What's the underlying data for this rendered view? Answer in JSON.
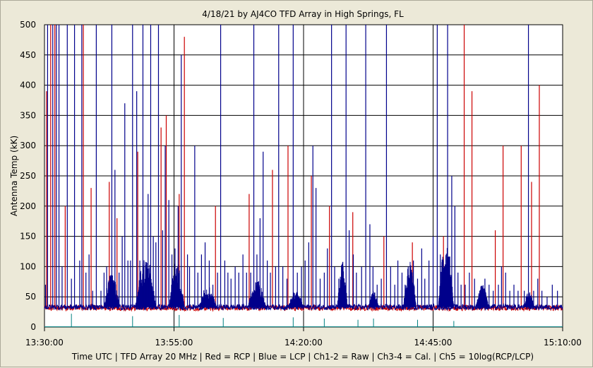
{
  "chart_data": {
    "type": "line",
    "title": "4/18/21  by  AJ4CO TFD Array  in  High Springs, FL",
    "ylabel": "Antenna Temp (kK)",
    "xlabel": "Time UTC | TFD Array 20 MHz | Red = RCP | Blue = LCP | Ch1-2 = Raw | Ch3-4 = Cal. | Ch5 = 10log(RCP/LCP)",
    "ylim": [
      0,
      500
    ],
    "yticks": [
      0,
      50,
      100,
      150,
      200,
      250,
      300,
      350,
      400,
      450,
      500
    ],
    "xlim_minutes": [
      0,
      100
    ],
    "xticks": [
      {
        "label": "13:30:00",
        "t": 0
      },
      {
        "label": "13:55:00",
        "t": 25
      },
      {
        "label": "14:20:00",
        "t": 50
      },
      {
        "label": "14:45:00",
        "t": 75
      },
      {
        "label": "15:10:00",
        "t": 100
      }
    ],
    "grid": true,
    "baseline_kK": 33,
    "series": [
      {
        "name": "RCP",
        "color": "#cc0000",
        "spikes": [
          [
            0.4,
            390
          ],
          [
            1.2,
            500
          ],
          [
            2.0,
            500
          ],
          [
            4.0,
            200
          ],
          [
            7.5,
            500
          ],
          [
            9.0,
            230
          ],
          [
            12.5,
            240
          ],
          [
            14.0,
            180
          ],
          [
            18.0,
            290
          ],
          [
            22.5,
            330
          ],
          [
            23.5,
            350
          ],
          [
            26.0,
            220
          ],
          [
            27.0,
            480
          ],
          [
            33.0,
            200
          ],
          [
            39.5,
            220
          ],
          [
            44.0,
            260
          ],
          [
            47.0,
            300
          ],
          [
            51.5,
            250
          ],
          [
            55.0,
            200
          ],
          [
            59.5,
            190
          ],
          [
            65.5,
            150
          ],
          [
            71.0,
            140
          ],
          [
            77.0,
            150
          ],
          [
            81.0,
            500
          ],
          [
            82.5,
            390
          ],
          [
            87.0,
            160
          ],
          [
            88.5,
            300
          ],
          [
            92.0,
            300
          ],
          [
            94.0,
            240
          ],
          [
            95.5,
            400
          ]
        ]
      },
      {
        "name": "LCP",
        "color": "#00008b",
        "spikes": [
          [
            0.2,
            70
          ],
          [
            0.6,
            500
          ],
          [
            1.6,
            500
          ],
          [
            2.3,
            500
          ],
          [
            2.8,
            500
          ],
          [
            3.4,
            100
          ],
          [
            4.4,
            500
          ],
          [
            5.2,
            80
          ],
          [
            5.8,
            500
          ],
          [
            6.8,
            110
          ],
          [
            7.2,
            500
          ],
          [
            8.0,
            90
          ],
          [
            8.6,
            120
          ],
          [
            9.3,
            60
          ],
          [
            10.0,
            500
          ],
          [
            10.9,
            60
          ],
          [
            11.5,
            90
          ],
          [
            12.0,
            100
          ],
          [
            13.0,
            500
          ],
          [
            13.6,
            260
          ],
          [
            14.4,
            90
          ],
          [
            15.0,
            150
          ],
          [
            15.5,
            370
          ],
          [
            16.1,
            110
          ],
          [
            16.6,
            110
          ],
          [
            17.0,
            500
          ],
          [
            17.8,
            390
          ],
          [
            18.4,
            110
          ],
          [
            19.0,
            500
          ],
          [
            19.6,
            90
          ],
          [
            20.0,
            220
          ],
          [
            20.5,
            500
          ],
          [
            21.0,
            150
          ],
          [
            21.5,
            140
          ],
          [
            22.0,
            500
          ],
          [
            22.8,
            160
          ],
          [
            23.3,
            300
          ],
          [
            24.0,
            210
          ],
          [
            24.6,
            120
          ],
          [
            25.2,
            130
          ],
          [
            25.8,
            200
          ],
          [
            26.4,
            450
          ],
          [
            27.6,
            120
          ],
          [
            28.0,
            100
          ],
          [
            29.0,
            300
          ],
          [
            29.6,
            90
          ],
          [
            30.3,
            120
          ],
          [
            31.0,
            140
          ],
          [
            31.8,
            110
          ],
          [
            32.5,
            70
          ],
          [
            33.4,
            90
          ],
          [
            34.0,
            500
          ],
          [
            34.8,
            110
          ],
          [
            35.4,
            90
          ],
          [
            36.0,
            80
          ],
          [
            36.8,
            100
          ],
          [
            37.5,
            90
          ],
          [
            38.3,
            120
          ],
          [
            39.0,
            90
          ],
          [
            39.8,
            90
          ],
          [
            40.4,
            500
          ],
          [
            41.0,
            120
          ],
          [
            41.6,
            180
          ],
          [
            42.2,
            290
          ],
          [
            43.0,
            110
          ],
          [
            43.6,
            90
          ],
          [
            44.6,
            100
          ],
          [
            45.2,
            500
          ],
          [
            46.0,
            100
          ],
          [
            46.8,
            80
          ],
          [
            48.0,
            500
          ],
          [
            48.8,
            90
          ],
          [
            49.6,
            100
          ],
          [
            50.3,
            110
          ],
          [
            51.0,
            140
          ],
          [
            51.8,
            300
          ],
          [
            52.4,
            230
          ],
          [
            53.2,
            80
          ],
          [
            54.0,
            90
          ],
          [
            54.6,
            130
          ],
          [
            55.4,
            500
          ],
          [
            56.0,
            100
          ],
          [
            56.8,
            80
          ],
          [
            57.4,
            90
          ],
          [
            58.2,
            500
          ],
          [
            58.8,
            160
          ],
          [
            59.6,
            120
          ],
          [
            60.2,
            90
          ],
          [
            61.2,
            100
          ],
          [
            62.0,
            500
          ],
          [
            62.8,
            170
          ],
          [
            63.4,
            100
          ],
          [
            64.2,
            70
          ],
          [
            65.0,
            80
          ],
          [
            66.0,
            500
          ],
          [
            66.8,
            100
          ],
          [
            67.6,
            70
          ],
          [
            68.2,
            110
          ],
          [
            69.0,
            90
          ],
          [
            69.6,
            70
          ],
          [
            70.2,
            100
          ],
          [
            71.2,
            110
          ],
          [
            72.0,
            80
          ],
          [
            72.8,
            130
          ],
          [
            73.4,
            80
          ],
          [
            74.2,
            110
          ],
          [
            75.0,
            150
          ],
          [
            75.8,
            500
          ],
          [
            76.4,
            120
          ],
          [
            77.2,
            100
          ],
          [
            77.8,
            500
          ],
          [
            78.6,
            250
          ],
          [
            79.2,
            200
          ],
          [
            79.8,
            90
          ],
          [
            80.4,
            70
          ],
          [
            81.2,
            70
          ],
          [
            82.0,
            90
          ],
          [
            83.0,
            80
          ],
          [
            84.0,
            60
          ],
          [
            85.0,
            80
          ],
          [
            85.8,
            70
          ],
          [
            86.6,
            60
          ],
          [
            87.6,
            70
          ],
          [
            88.2,
            100
          ],
          [
            89.0,
            90
          ],
          [
            89.8,
            60
          ],
          [
            90.6,
            70
          ],
          [
            91.4,
            60
          ],
          [
            92.6,
            60
          ],
          [
            93.4,
            500
          ],
          [
            94.4,
            60
          ],
          [
            95.2,
            80
          ],
          [
            96.0,
            60
          ],
          [
            97.0,
            50
          ],
          [
            98.0,
            70
          ],
          [
            99.0,
            60
          ]
        ],
        "clusters": [
          [
            13.0,
            3.0,
            90
          ],
          [
            19.5,
            4.0,
            120
          ],
          [
            25.5,
            3.0,
            110
          ],
          [
            31.5,
            3.5,
            70
          ],
          [
            41.0,
            3.5,
            80
          ],
          [
            48.5,
            3.0,
            60
          ],
          [
            57.5,
            2.0,
            110
          ],
          [
            63.5,
            2.0,
            60
          ],
          [
            70.5,
            2.5,
            110
          ],
          [
            77.5,
            3.0,
            150
          ],
          [
            84.5,
            2.5,
            70
          ],
          [
            93.5,
            2.0,
            60
          ]
        ]
      },
      {
        "name": "Ch5",
        "color": "#008080",
        "spikes": [
          [
            5.2,
            22
          ],
          [
            17.0,
            18
          ],
          [
            26.0,
            20
          ],
          [
            34.5,
            15
          ],
          [
            48.0,
            16
          ],
          [
            54.0,
            14
          ],
          [
            60.5,
            12
          ],
          [
            63.5,
            14
          ],
          [
            72.0,
            12
          ],
          [
            79.0,
            10
          ]
        ]
      }
    ]
  }
}
